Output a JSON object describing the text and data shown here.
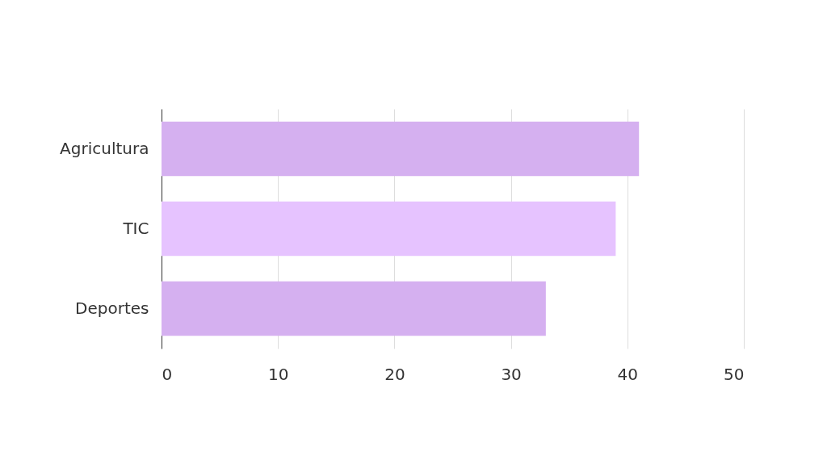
{
  "chart_data": {
    "type": "bar",
    "orientation": "horizontal",
    "categories": [
      "Agricultura",
      "TIC",
      "Deportes"
    ],
    "values": [
      41,
      39,
      33
    ],
    "colors": [
      "#d5b0f0",
      "#e6c3ff",
      "#d5b0f0"
    ],
    "xlim": [
      0,
      50
    ],
    "xticks": [
      0,
      10,
      20,
      30,
      40,
      50
    ],
    "grid": "x"
  }
}
